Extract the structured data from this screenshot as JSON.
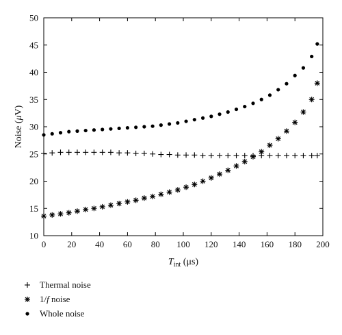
{
  "chart_data": {
    "type": "scatter",
    "xlabel": {
      "main": "T",
      "sub": "int",
      "rest": " (μs)"
    },
    "ylabel": {
      "main": "Noise (",
      "unit": "μ",
      "rest": "V)"
    },
    "xlim": [
      0,
      200
    ],
    "ylim": [
      10,
      50
    ],
    "x_ticks": [
      0,
      20,
      40,
      60,
      80,
      100,
      120,
      140,
      160,
      180,
      200
    ],
    "y_ticks": [
      10,
      15,
      20,
      25,
      30,
      35,
      40,
      45,
      50
    ],
    "grid": false,
    "legend_position": "below-left",
    "series": [
      {
        "name": "Thermal noise",
        "name_parts": [
          "Thermal noise"
        ],
        "marker": "plus",
        "x": [
          0,
          6,
          12,
          18,
          24,
          30,
          36,
          42,
          48,
          54,
          60,
          66,
          72,
          78,
          84,
          90,
          96,
          102,
          108,
          114,
          120,
          126,
          132,
          138,
          144,
          150,
          156,
          162,
          168,
          174,
          180,
          186,
          192,
          196
        ],
        "values": [
          25.1,
          25.2,
          25.3,
          25.3,
          25.3,
          25.3,
          25.3,
          25.3,
          25.3,
          25.2,
          25.2,
          25.1,
          25.1,
          25.0,
          24.9,
          24.9,
          24.8,
          24.8,
          24.8,
          24.7,
          24.7,
          24.7,
          24.7,
          24.7,
          24.7,
          24.7,
          24.7,
          24.7,
          24.7,
          24.7,
          24.7,
          24.7,
          24.7,
          24.7
        ]
      },
      {
        "name": "1/f noise",
        "name_parts": [
          "1/",
          "f",
          " noise"
        ],
        "marker": "asterisk",
        "x": [
          0,
          6,
          12,
          18,
          24,
          30,
          36,
          42,
          48,
          54,
          60,
          66,
          72,
          78,
          84,
          90,
          96,
          102,
          108,
          114,
          120,
          126,
          132,
          138,
          144,
          150,
          156,
          162,
          168,
          174,
          180,
          186,
          192,
          196
        ],
        "values": [
          13.6,
          13.8,
          14.0,
          14.2,
          14.5,
          14.8,
          15.0,
          15.3,
          15.6,
          15.9,
          16.2,
          16.5,
          16.9,
          17.2,
          17.6,
          18.0,
          18.4,
          18.9,
          19.4,
          20.0,
          20.6,
          21.3,
          22.0,
          22.8,
          23.6,
          24.5,
          25.4,
          26.6,
          27.8,
          29.2,
          30.8,
          32.7,
          35.0,
          38.0
        ]
      },
      {
        "name": "Whole noise",
        "name_parts": [
          "Whole noise"
        ],
        "marker": "dot",
        "x": [
          0,
          6,
          12,
          18,
          24,
          30,
          36,
          42,
          48,
          54,
          60,
          66,
          72,
          78,
          84,
          90,
          96,
          102,
          108,
          114,
          120,
          126,
          132,
          138,
          144,
          150,
          156,
          162,
          168,
          174,
          180,
          186,
          192,
          196
        ],
        "values": [
          28.5,
          28.7,
          28.9,
          29.1,
          29.2,
          29.3,
          29.4,
          29.5,
          29.6,
          29.7,
          29.8,
          29.9,
          30.0,
          30.1,
          30.3,
          30.5,
          30.7,
          31.0,
          31.3,
          31.6,
          31.9,
          32.3,
          32.7,
          33.2,
          33.7,
          34.3,
          35.0,
          35.8,
          36.8,
          37.9,
          39.4,
          40.8,
          42.9,
          45.2
        ]
      }
    ]
  }
}
